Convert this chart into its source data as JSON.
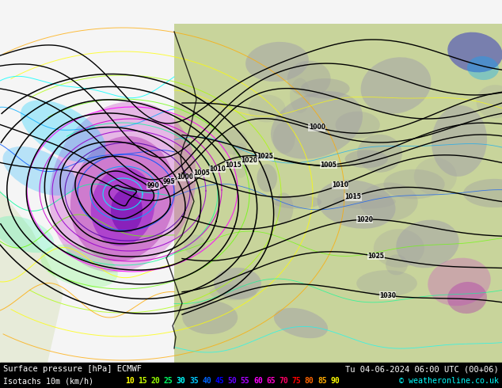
{
  "title_line1": "Surface pressure [hPa] ECMWF",
  "title_line2": "Tu 04-06-2024 06:00 UTC (00+06)",
  "legend_label": "Isotachs 10m (km/h)",
  "copyright": "© weatheronline.co.uk",
  "isotach_values": [
    10,
    15,
    20,
    25,
    30,
    35,
    40,
    45,
    50,
    55,
    60,
    65,
    70,
    75,
    80,
    85,
    90
  ],
  "isotach_colors": [
    "#ffff00",
    "#c8ff00",
    "#96ff00",
    "#00ff64",
    "#00ffff",
    "#00c8ff",
    "#0064ff",
    "#0000ff",
    "#6400ff",
    "#aa00ff",
    "#ff00ff",
    "#ff00c8",
    "#ff0064",
    "#ff0000",
    "#ff6400",
    "#ffaa00",
    "#ffff00"
  ],
  "bg_left": "#f0f0f0",
  "bg_land": "#c8d49b",
  "bg_mountain": "#b0b0b0",
  "bottom_bar_color": "#000000",
  "fig_width": 6.34,
  "fig_height": 4.9,
  "dpi": 100
}
